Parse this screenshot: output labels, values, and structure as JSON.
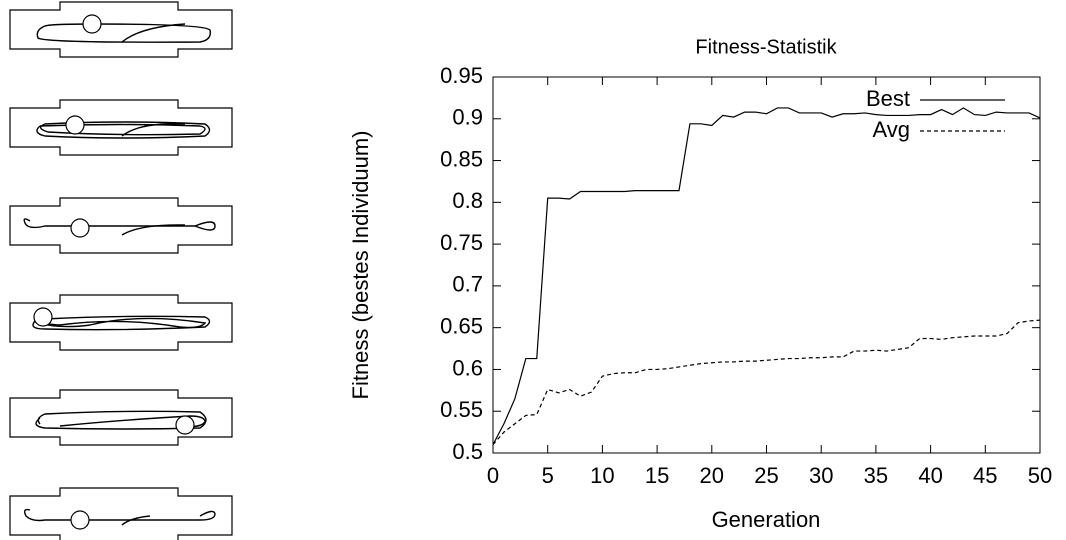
{
  "chart_data": {
    "type": "line",
    "title": "Fitness-Statistik",
    "x_label": "Generation",
    "y_label": "Fitness (bestes Individuum)",
    "x": [
      0,
      1,
      2,
      3,
      4,
      5,
      6,
      7,
      8,
      9,
      10,
      11,
      12,
      13,
      14,
      15,
      16,
      17,
      18,
      19,
      20,
      21,
      22,
      23,
      24,
      25,
      26,
      27,
      28,
      29,
      30,
      31,
      32,
      33,
      34,
      35,
      36,
      37,
      38,
      39,
      40,
      41,
      42,
      43,
      44,
      45,
      46,
      47,
      48,
      49,
      50
    ],
    "series": [
      {
        "name": "Best",
        "color": "#000000",
        "dash": "solid",
        "values": [
          0.51,
          0.535,
          0.565,
          0.613,
          0.613,
          0.805,
          0.805,
          0.804,
          0.813,
          0.813,
          0.813,
          0.813,
          0.813,
          0.814,
          0.814,
          0.814,
          0.814,
          0.814,
          0.894,
          0.894,
          0.892,
          0.904,
          0.902,
          0.908,
          0.908,
          0.906,
          0.913,
          0.913,
          0.907,
          0.907,
          0.907,
          0.902,
          0.906,
          0.906,
          0.907,
          0.905,
          0.904,
          0.904,
          0.904,
          0.905,
          0.905,
          0.911,
          0.905,
          0.913,
          0.905,
          0.904,
          0.908,
          0.907,
          0.907,
          0.907,
          0.901
        ]
      },
      {
        "name": "Avg",
        "color": "#000000",
        "dash": "dashed",
        "values": [
          0.51,
          0.525,
          0.535,
          0.545,
          0.546,
          0.576,
          0.572,
          0.576,
          0.568,
          0.573,
          0.592,
          0.595,
          0.596,
          0.596,
          0.6,
          0.6,
          0.601,
          0.603,
          0.605,
          0.607,
          0.608,
          0.609,
          0.609,
          0.61,
          0.61,
          0.611,
          0.612,
          0.613,
          0.613,
          0.614,
          0.614,
          0.615,
          0.615,
          0.622,
          0.622,
          0.623,
          0.622,
          0.624,
          0.626,
          0.637,
          0.637,
          0.636,
          0.638,
          0.639,
          0.64,
          0.64,
          0.64,
          0.643,
          0.656,
          0.658,
          0.659
        ]
      }
    ],
    "xlim": [
      0,
      50
    ],
    "xticks": [
      0,
      5,
      10,
      15,
      20,
      25,
      30,
      35,
      40,
      45,
      50
    ],
    "ylim": [
      0.5,
      0.95
    ],
    "yticks": [
      0.5,
      0.55,
      0.6,
      0.65,
      0.7,
      0.75,
      0.8,
      0.85,
      0.9,
      0.95
    ],
    "legend": "upper right",
    "grid": false
  }
}
